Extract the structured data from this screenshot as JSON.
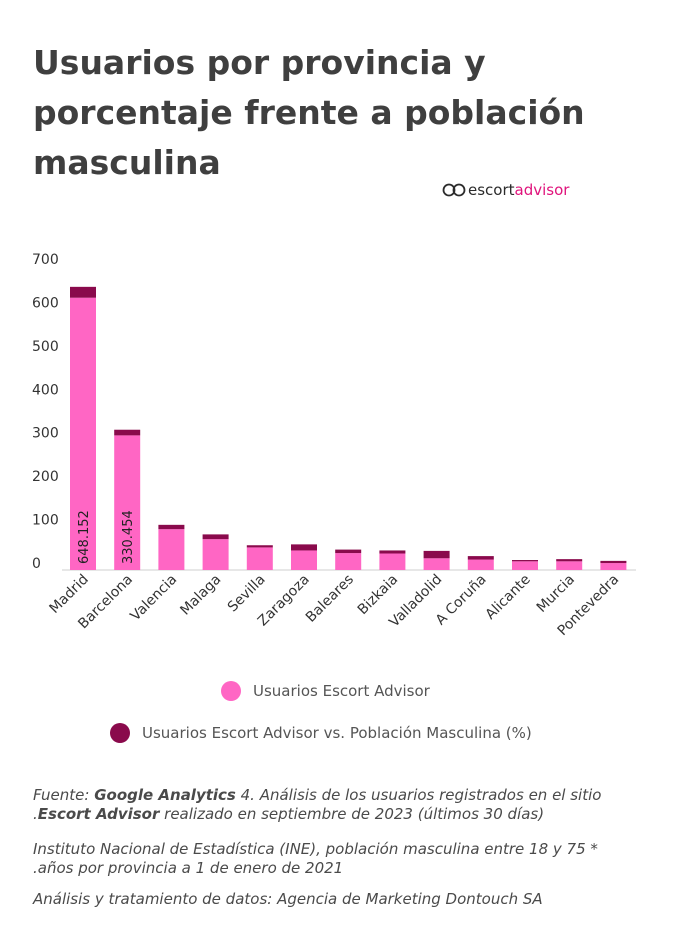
{
  "title": "Usuarios por provincia y porcentaje frente a población masculina",
  "brand": {
    "part1": "escort",
    "part2": "advisor"
  },
  "legend": [
    {
      "label": "Usuarios Escort Advisor",
      "color": "#ff66c4"
    },
    {
      "label": "Usuarios Escort Advisor vs. Población Masculina (%)",
      "color": "#8a0a4c"
    }
  ],
  "notes": {
    "n1_a": "Fuente: ",
    "n1_b": "Google Analytics",
    "n1_c": " 4. Análisis de los usuarios registrados en el sitio",
    "n1_d": ".",
    "n1_e": "Escort Advisor",
    "n1_f": " realizado en septiembre de 2023 (últimos 30 días)",
    "n2_a": "Instituto Nacional de Estadística (INE), población masculina entre 18 y 75 *",
    "n2_b": ".años por provincia a 1 de enero de 2021",
    "n3": "Análisis y tratamiento de datos: Agencia de Marketing Dontouch SA"
  },
  "chart_data": {
    "type": "bar",
    "stacked": true,
    "categories": [
      "Madrid",
      "Barcelona",
      "Valencia",
      "Malaga",
      "Sevilla",
      "Zaragoza",
      "Baleares",
      "Bizkaia",
      "Valladolid",
      "A Coruña",
      "Alicante",
      "Murcia",
      "Pontevedra"
    ],
    "series": [
      {
        "name": "Usuarios Escort Advisor",
        "color": "#ff66c4",
        "values": [
          627,
          310,
          94,
          71,
          52,
          45,
          39,
          38,
          27,
          24,
          20,
          20,
          16
        ]
      },
      {
        "name": "Usuarios Escort Advisor vs. Población Masculina (%)",
        "color": "#8a0a4c",
        "values": [
          25,
          13,
          10,
          11,
          5,
          14,
          8,
          7,
          17,
          8,
          3,
          5,
          5
        ]
      }
    ],
    "data_labels": [
      "648.152",
      "330.454"
    ],
    "yticks": [
      0,
      100,
      200,
      300,
      400,
      500,
      600,
      700
    ],
    "ylim": [
      0,
      700
    ],
    "grid": false
  }
}
